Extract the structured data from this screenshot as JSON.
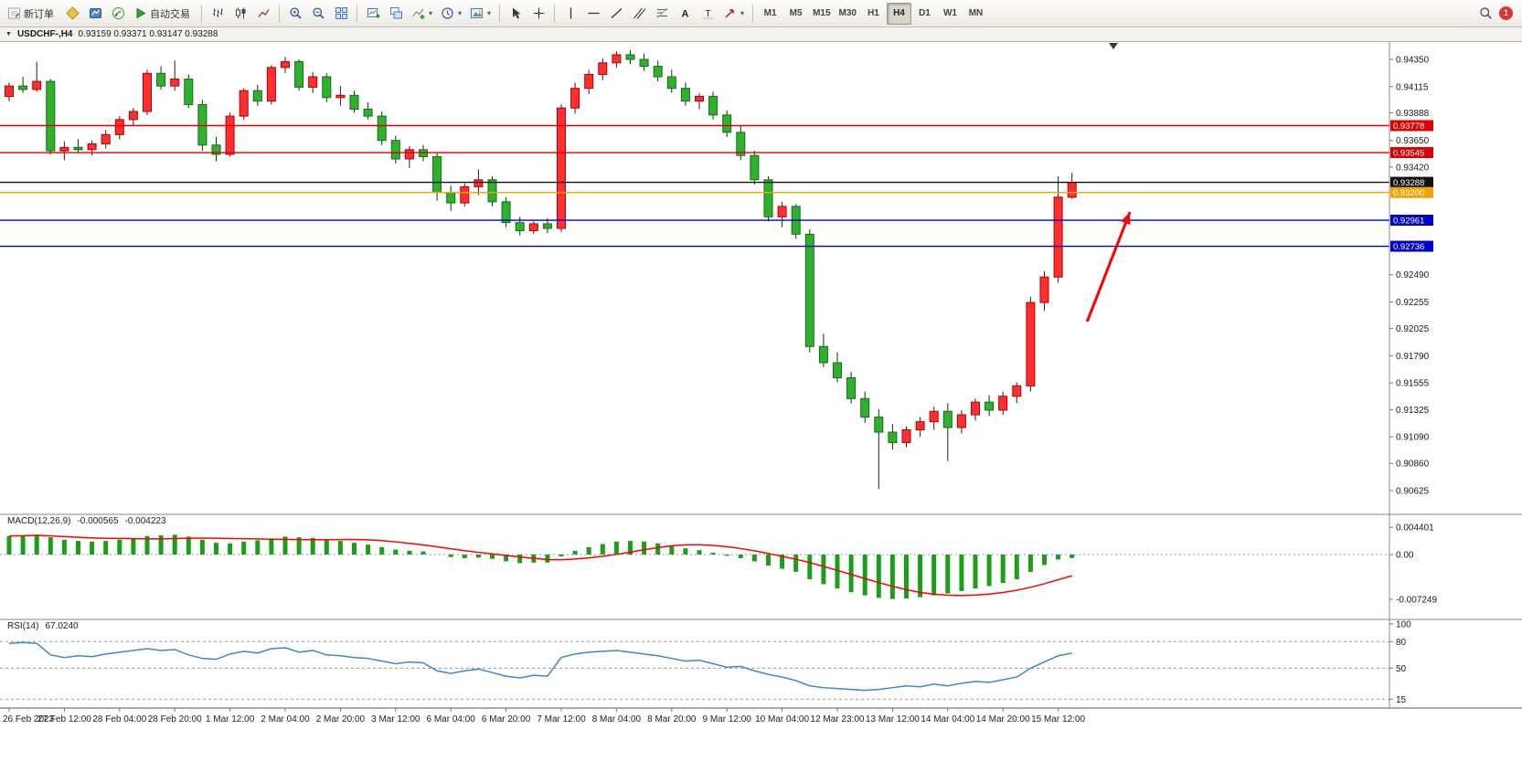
{
  "toolbar": {
    "new_order_label": "新订单",
    "autotrading_label": "自动交易",
    "timeframes": [
      "M1",
      "M5",
      "M15",
      "M30",
      "H1",
      "H4",
      "D1",
      "W1",
      "MN"
    ],
    "active_timeframe": "H4",
    "notification_count": "1"
  },
  "chart_header": {
    "symbol_period": "USDCHF-,H4",
    "ohlc_text": "0.93159 0.93371 0.93147 0.93288"
  },
  "chart_data": {
    "type": "candlestick",
    "symbol": "USDCHF-",
    "period": "H4",
    "price_range": [
      0.9042,
      0.945
    ],
    "price_axis_labels": [
      "0.94350",
      "0.94115",
      "0.93888",
      "0.93650",
      "0.93420",
      "0.92490",
      "0.92255",
      "0.92025",
      "0.91790",
      "0.91555",
      "0.91325",
      "0.91090",
      "0.90860",
      "0.90625"
    ],
    "date_labels": [
      "26 Feb 2023",
      "27 Feb 12:00",
      "28 Feb 04:00",
      "28 Feb 20:00",
      "1 Mar 12:00",
      "2 Mar 04:00",
      "2 Mar 20:00",
      "3 Mar 12:00",
      "6 Mar 04:00",
      "6 Mar 20:00",
      "7 Mar 12:00",
      "8 Mar 04:00",
      "8 Mar 20:00",
      "9 Mar 12:00",
      "10 Mar 04:00",
      "12 Mar 23:00",
      "13 Mar 12:00",
      "14 Mar 04:00",
      "14 Mar 20:00",
      "15 Mar 12:00"
    ],
    "label_every_n_candles": 4,
    "candles": [
      [
        0.9403,
        0.9415,
        0.9399,
        0.9412
      ],
      [
        0.9412,
        0.942,
        0.9406,
        0.9409
      ],
      [
        0.9409,
        0.9433,
        0.9407,
        0.9416
      ],
      [
        0.9416,
        0.9418,
        0.9353,
        0.9356
      ],
      [
        0.9356,
        0.9364,
        0.9348,
        0.9359
      ],
      [
        0.9359,
        0.9366,
        0.9354,
        0.9357
      ],
      [
        0.9357,
        0.9365,
        0.9352,
        0.9362
      ],
      [
        0.9362,
        0.9374,
        0.9358,
        0.937
      ],
      [
        0.937,
        0.9386,
        0.9366,
        0.9383
      ],
      [
        0.9383,
        0.9393,
        0.9378,
        0.939
      ],
      [
        0.939,
        0.9426,
        0.9387,
        0.9423
      ],
      [
        0.9423,
        0.9429,
        0.9409,
        0.9412
      ],
      [
        0.9412,
        0.9434,
        0.9408,
        0.9418
      ],
      [
        0.9418,
        0.9422,
        0.9393,
        0.9396
      ],
      [
        0.9396,
        0.94,
        0.9356,
        0.9361
      ],
      [
        0.9361,
        0.9368,
        0.9347,
        0.9353
      ],
      [
        0.9353,
        0.9389,
        0.9351,
        0.9386
      ],
      [
        0.9386,
        0.941,
        0.9383,
        0.9408
      ],
      [
        0.9408,
        0.9413,
        0.9395,
        0.9399
      ],
      [
        0.9399,
        0.943,
        0.9396,
        0.9428
      ],
      [
        0.9428,
        0.9437,
        0.9423,
        0.9433
      ],
      [
        0.9433,
        0.9435,
        0.9408,
        0.9411
      ],
      [
        0.9411,
        0.9424,
        0.9406,
        0.942
      ],
      [
        0.942,
        0.9423,
        0.9398,
        0.9402
      ],
      [
        0.9402,
        0.9412,
        0.9395,
        0.9404
      ],
      [
        0.9404,
        0.9408,
        0.9389,
        0.9392
      ],
      [
        0.9392,
        0.9398,
        0.9383,
        0.9386
      ],
      [
        0.9386,
        0.939,
        0.9361,
        0.9365
      ],
      [
        0.9365,
        0.9369,
        0.9345,
        0.9349
      ],
      [
        0.9349,
        0.936,
        0.9341,
        0.9357
      ],
      [
        0.9357,
        0.9361,
        0.9347,
        0.9351
      ],
      [
        0.9351,
        0.9354,
        0.9313,
        0.932
      ],
      [
        0.932,
        0.9326,
        0.9304,
        0.9311
      ],
      [
        0.9311,
        0.9328,
        0.9308,
        0.9325
      ],
      [
        0.9325,
        0.934,
        0.9318,
        0.9331
      ],
      [
        0.9331,
        0.9334,
        0.9308,
        0.9312
      ],
      [
        0.9312,
        0.9316,
        0.929,
        0.9294
      ],
      [
        0.9294,
        0.9299,
        0.9283,
        0.9287
      ],
      [
        0.9287,
        0.9295,
        0.9284,
        0.9293
      ],
      [
        0.9293,
        0.9298,
        0.9285,
        0.9289
      ],
      [
        0.9289,
        0.9396,
        0.9286,
        0.9393
      ],
      [
        0.9393,
        0.9415,
        0.9388,
        0.941
      ],
      [
        0.941,
        0.9426,
        0.9405,
        0.9422
      ],
      [
        0.9422,
        0.9436,
        0.9417,
        0.9432
      ],
      [
        0.9432,
        0.9442,
        0.9428,
        0.9439
      ],
      [
        0.9439,
        0.9443,
        0.9431,
        0.9435
      ],
      [
        0.9435,
        0.944,
        0.9425,
        0.9429
      ],
      [
        0.9429,
        0.9434,
        0.9416,
        0.942
      ],
      [
        0.942,
        0.9426,
        0.9406,
        0.941
      ],
      [
        0.941,
        0.9415,
        0.9395,
        0.9399
      ],
      [
        0.9399,
        0.9406,
        0.9392,
        0.9403
      ],
      [
        0.9403,
        0.9407,
        0.9383,
        0.9387
      ],
      [
        0.9387,
        0.9391,
        0.9368,
        0.9372
      ],
      [
        0.9372,
        0.9378,
        0.9348,
        0.9352
      ],
      [
        0.9352,
        0.9356,
        0.9327,
        0.9331
      ],
      [
        0.9331,
        0.9334,
        0.9295,
        0.9299
      ],
      [
        0.9299,
        0.9312,
        0.929,
        0.9308
      ],
      [
        0.9308,
        0.931,
        0.928,
        0.9284
      ],
      [
        0.9284,
        0.9288,
        0.9182,
        0.9187
      ],
      [
        0.9187,
        0.9198,
        0.9169,
        0.9173
      ],
      [
        0.9173,
        0.9182,
        0.9156,
        0.916
      ],
      [
        0.916,
        0.9165,
        0.9138,
        0.9142
      ],
      [
        0.9142,
        0.9148,
        0.9121,
        0.9126
      ],
      [
        0.9126,
        0.9133,
        0.9064,
        0.9113
      ],
      [
        0.9113,
        0.912,
        0.9098,
        0.9104
      ],
      [
        0.9104,
        0.9118,
        0.91,
        0.9115
      ],
      [
        0.9115,
        0.9126,
        0.9109,
        0.9122
      ],
      [
        0.9122,
        0.9135,
        0.9115,
        0.9131
      ],
      [
        0.9131,
        0.9138,
        0.9088,
        0.9117
      ],
      [
        0.9117,
        0.9132,
        0.9112,
        0.9128
      ],
      [
        0.9128,
        0.9142,
        0.9123,
        0.9139
      ],
      [
        0.9139,
        0.9145,
        0.9127,
        0.9132
      ],
      [
        0.9132,
        0.9148,
        0.9128,
        0.9144
      ],
      [
        0.9144,
        0.9156,
        0.9138,
        0.9153
      ],
      [
        0.9153,
        0.923,
        0.9148,
        0.9225
      ],
      [
        0.9225,
        0.9252,
        0.9218,
        0.9247
      ],
      [
        0.9247,
        0.9334,
        0.9242,
        0.9316
      ],
      [
        0.93159,
        0.93371,
        0.93147,
        0.93288
      ]
    ],
    "hlines": [
      {
        "price": 0.93778,
        "label": "0.93778",
        "color": "#e00000"
      },
      {
        "price": 0.93545,
        "label": "0.93545",
        "color": "#e00000"
      },
      {
        "price": 0.93288,
        "label": "0.93288",
        "color": "#111111"
      },
      {
        "price": 0.932,
        "label": "0.93200",
        "color": "#f0a500"
      },
      {
        "price": 0.92961,
        "label": "0.92961",
        "color": "#0000cc"
      },
      {
        "price": 0.92736,
        "label": "0.92736",
        "color": "#0000cc"
      }
    ],
    "arrow": {
      "from_index": 78.1,
      "from_price": 0.92085,
      "to_index": 81.2,
      "to_price": 0.93032,
      "color": "#ff0000"
    },
    "shift_marker_index": 80,
    "colors": {
      "up": "#ff2f2f",
      "up_border": "#b30000",
      "down": "#2eb22e",
      "down_border": "#156d15",
      "wick": "#222222",
      "separator": "#8a8a8a",
      "axis_text": "#1a1a1a"
    },
    "macd": {
      "label": "MACD(12,26,9)",
      "value_main": "-0.000565",
      "value_signal": "-0.004223",
      "axis_labels": [
        {
          "text": "0.004401",
          "value": 0.004401
        },
        {
          "text": "0.00",
          "value": 0
        },
        {
          "text": "-0.007249",
          "value": -0.007249
        }
      ],
      "range": [
        -0.0105,
        0.0065
      ],
      "histogram_color": "#18a018",
      "signal_color": "#ff0000",
      "values": [
        0.003,
        0.0031,
        0.0032,
        0.0028,
        0.0024,
        0.0022,
        0.0021,
        0.0022,
        0.0024,
        0.0026,
        0.003,
        0.0031,
        0.0032,
        0.0029,
        0.0024,
        0.0019,
        0.0018,
        0.0021,
        0.0023,
        0.0026,
        0.0029,
        0.0028,
        0.0027,
        0.0024,
        0.0022,
        0.0019,
        0.0016,
        0.0012,
        0.0008,
        0.0006,
        0.0005,
        0,
        -0.0004,
        -0.0006,
        -0.0005,
        -0.0007,
        -0.0011,
        -0.0014,
        -0.0013,
        -0.0013,
        -0.0003,
        0.0006,
        0.0012,
        0.0017,
        0.0021,
        0.0022,
        0.0021,
        0.0018,
        0.0014,
        0.001,
        0.0007,
        0.0003,
        -0.0002,
        -0.0006,
        -0.0011,
        -0.0018,
        -0.0023,
        -0.0028,
        -0.004,
        -0.0048,
        -0.0055,
        -0.0061,
        -0.0066,
        -0.007,
        -0.0072,
        -0.0071,
        -0.0069,
        -0.0066,
        -0.0063,
        -0.0059,
        -0.0055,
        -0.0051,
        -0.0046,
        -0.004,
        -0.0028,
        -0.0017,
        -0.0008,
        -0.000565
      ]
    },
    "rsi": {
      "label": "RSI(14)",
      "value": "67.0240",
      "axis_labels": [
        {
          "text": "100",
          "value": 100
        },
        {
          "text": "80",
          "value": 80
        },
        {
          "text": "50",
          "value": 50
        },
        {
          "text": "15",
          "value": 15
        }
      ],
      "levels": [
        80,
        50,
        15
      ],
      "range": [
        5,
        105
      ],
      "line_color": "#3f87c9",
      "values": [
        78,
        79,
        78,
        65,
        62,
        64,
        63,
        66,
        68,
        70,
        72,
        70,
        71,
        65,
        61,
        60,
        66,
        69,
        67,
        72,
        73,
        68,
        70,
        65,
        64,
        62,
        61,
        58,
        55,
        57,
        56,
        47,
        44,
        47,
        49,
        45,
        41,
        39,
        42,
        41,
        62,
        66,
        68,
        69,
        70,
        68,
        66,
        64,
        61,
        58,
        59,
        55,
        51,
        52,
        47,
        43,
        40,
        36,
        30,
        28,
        27,
        26,
        25,
        26,
        28,
        30,
        29,
        32,
        30,
        33,
        35,
        34,
        37,
        40,
        50,
        57,
        64,
        67.02
      ]
    }
  }
}
